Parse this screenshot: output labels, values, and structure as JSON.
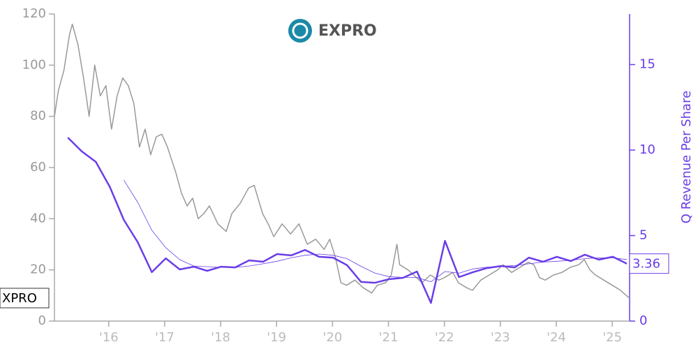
{
  "chart_data": {
    "type": "line",
    "title": "EXPRO",
    "y2label": "Q Revenue Per Share",
    "xlim": [
      2015.03,
      2025.31
    ],
    "xticks": [
      {
        "value": 2016,
        "label": "'16"
      },
      {
        "value": 2017,
        "label": "'17"
      },
      {
        "value": 2018,
        "label": "'18"
      },
      {
        "value": 2019,
        "label": "'19"
      },
      {
        "value": 2020,
        "label": "'20"
      },
      {
        "value": 2021,
        "label": "'21"
      },
      {
        "value": 2022,
        "label": "'22"
      },
      {
        "value": 2023,
        "label": "'23"
      },
      {
        "value": 2024,
        "label": "'24"
      },
      {
        "value": 2025,
        "label": "'25"
      }
    ],
    "ylim": [
      0,
      120
    ],
    "yticks": [
      0,
      20,
      40,
      60,
      80,
      100,
      120
    ],
    "y2lim": [
      0,
      17.96
    ],
    "y2ticks": [
      0,
      5,
      10,
      15
    ],
    "series": [
      {
        "name": "XPRO",
        "color": "#999999",
        "x": [
          2015.03,
          2015.1,
          2015.2,
          2015.3,
          2015.35,
          2015.45,
          2015.55,
          2015.65,
          2015.75,
          2015.85,
          2015.95,
          2016.05,
          2016.15,
          2016.25,
          2016.35,
          2016.45,
          2016.55,
          2016.65,
          2016.75,
          2016.85,
          2016.95,
          2017.05,
          2017.2,
          2017.3,
          2017.4,
          2017.5,
          2017.6,
          2017.7,
          2017.8,
          2017.95,
          2018.1,
          2018.2,
          2018.35,
          2018.5,
          2018.6,
          2018.75,
          2018.85,
          2018.95,
          2019.1,
          2019.25,
          2019.4,
          2019.55,
          2019.7,
          2019.85,
          2019.95,
          2020.05,
          2020.15,
          2020.25,
          2020.4,
          2020.55,
          2020.7,
          2020.8,
          2020.95,
          2021.05,
          2021.15,
          2021.2,
          2021.35,
          2021.5,
          2021.6,
          2021.75,
          2021.9,
          2022.0,
          2022.15,
          2022.25,
          2022.4,
          2022.5,
          2022.65,
          2022.8,
          2022.95,
          2023.05,
          2023.2,
          2023.35,
          2023.5,
          2023.6,
          2023.7,
          2023.8,
          2023.95,
          2024.1,
          2024.25,
          2024.4,
          2024.5,
          2024.6,
          2024.7,
          2024.85,
          2025.0,
          2025.15,
          2025.25,
          2025.31
        ],
        "values": [
          80,
          90,
          98,
          112,
          116,
          108,
          95,
          80,
          100,
          88,
          92,
          75,
          88,
          95,
          92,
          85,
          68,
          75,
          65,
          72,
          73,
          68,
          58,
          50,
          45,
          48,
          40,
          42,
          45,
          38,
          35,
          42,
          46,
          52,
          53,
          42,
          38,
          33,
          38,
          34,
          38,
          30,
          32,
          28,
          32,
          25,
          15,
          14,
          16,
          13,
          11,
          14,
          15,
          18,
          30,
          22,
          20,
          17,
          15,
          18,
          16,
          17,
          19,
          15,
          13,
          12,
          16,
          18,
          20,
          22,
          19,
          21,
          23,
          22,
          17,
          16,
          18,
          19,
          21,
          22,
          24,
          20,
          18,
          16,
          14,
          12,
          10,
          9
        ]
      },
      {
        "color": "#6a3de8",
        "axis": "y2",
        "width": 2.5,
        "x": [
          2015.27,
          2015.52,
          2015.77,
          2016.02,
          2016.27,
          2016.52,
          2016.77,
          2017.02,
          2017.27,
          2017.52,
          2017.76,
          2018.01,
          2018.26,
          2018.51,
          2018.76,
          2019.01,
          2019.26,
          2019.51,
          2019.76,
          2020.01,
          2020.26,
          2020.51,
          2020.76,
          2021.01,
          2021.26,
          2021.51,
          2021.76,
          2022.01,
          2022.26,
          2022.51,
          2022.76,
          2023.01,
          2023.26,
          2023.51,
          2023.76,
          2024.01,
          2024.26,
          2024.51,
          2024.76,
          2025.01,
          2025.26
        ],
        "values": [
          10.73,
          9.92,
          9.31,
          7.84,
          5.92,
          4.61,
          2.86,
          3.67,
          3.02,
          3.18,
          2.94,
          3.18,
          3.14,
          3.55,
          3.47,
          3.92,
          3.84,
          4.16,
          3.76,
          3.71,
          3.27,
          2.29,
          2.24,
          2.45,
          2.53,
          2.9,
          1.06,
          4.69,
          2.57,
          2.86,
          3.1,
          3.22,
          3.14,
          3.71,
          3.47,
          3.76,
          3.51,
          3.88,
          3.59,
          3.76,
          3.36
        ]
      },
      {
        "color": "#6a3de8",
        "axis": "y2",
        "width": 0.8,
        "x": [
          2016.27,
          2016.52,
          2016.77,
          2017.02,
          2017.27,
          2017.52,
          2017.77,
          2018.01,
          2018.26,
          2018.51,
          2018.76,
          2019.01,
          2019.26,
          2019.51,
          2019.76,
          2020.01,
          2020.26,
          2020.51,
          2020.76,
          2021.01,
          2021.26,
          2021.51,
          2021.76,
          2022.01,
          2022.26,
          2022.51,
          2022.76,
          2023.01,
          2023.26,
          2023.51,
          2023.76,
          2024.01,
          2024.26,
          2024.51,
          2024.76,
          2025.01,
          2025.26
        ],
        "values": [
          8.24,
          6.94,
          5.31,
          4.29,
          3.59,
          3.22,
          3.18,
          3.14,
          3.14,
          3.22,
          3.35,
          3.5,
          3.7,
          3.85,
          3.92,
          3.85,
          3.65,
          3.2,
          2.8,
          2.6,
          2.55,
          2.55,
          2.3,
          2.9,
          2.8,
          3.05,
          3.15,
          3.2,
          3.25,
          3.35,
          3.45,
          3.5,
          3.55,
          3.65,
          3.7,
          3.7,
          3.6
        ]
      }
    ]
  }
}
